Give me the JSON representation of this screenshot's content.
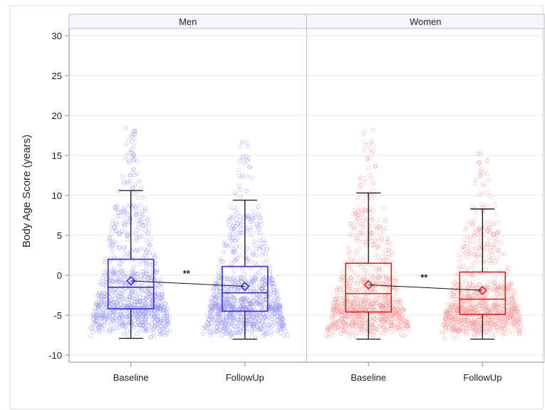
{
  "chart_data": {
    "type": "box",
    "ylabel": "Body Age Score (years)",
    "ylim": [
      -11,
      31
    ],
    "yticks": [
      -10,
      -5,
      0,
      5,
      10,
      15,
      20,
      25,
      30
    ],
    "grid": true,
    "categories": [
      "Baseline",
      "FollowUp"
    ],
    "panels": [
      {
        "name": "Men",
        "color": "#2f2fd8",
        "point_color": "#9a9af0",
        "significance": "**",
        "boxes": [
          {
            "category": "Baseline",
            "min": -7.9,
            "q1": -4.2,
            "median": -1.5,
            "q3": 2.0,
            "max": 10.6,
            "mean": -0.7
          },
          {
            "category": "FollowUp",
            "min": -8.0,
            "q1": -4.5,
            "median": -2.2,
            "q3": 1.1,
            "max": 9.4,
            "mean": -1.4
          }
        ]
      },
      {
        "name": "Women",
        "color": "#e02020",
        "point_color": "#f2a0a0",
        "significance": "**",
        "boxes": [
          {
            "category": "Baseline",
            "min": -8.0,
            "q1": -4.6,
            "median": -2.3,
            "q3": 1.5,
            "max": 10.3,
            "mean": -1.2
          },
          {
            "category": "FollowUp",
            "min": -8.0,
            "q1": -4.9,
            "median": -3.0,
            "q3": 0.4,
            "max": 8.3,
            "mean": -1.9
          }
        ]
      }
    ]
  }
}
